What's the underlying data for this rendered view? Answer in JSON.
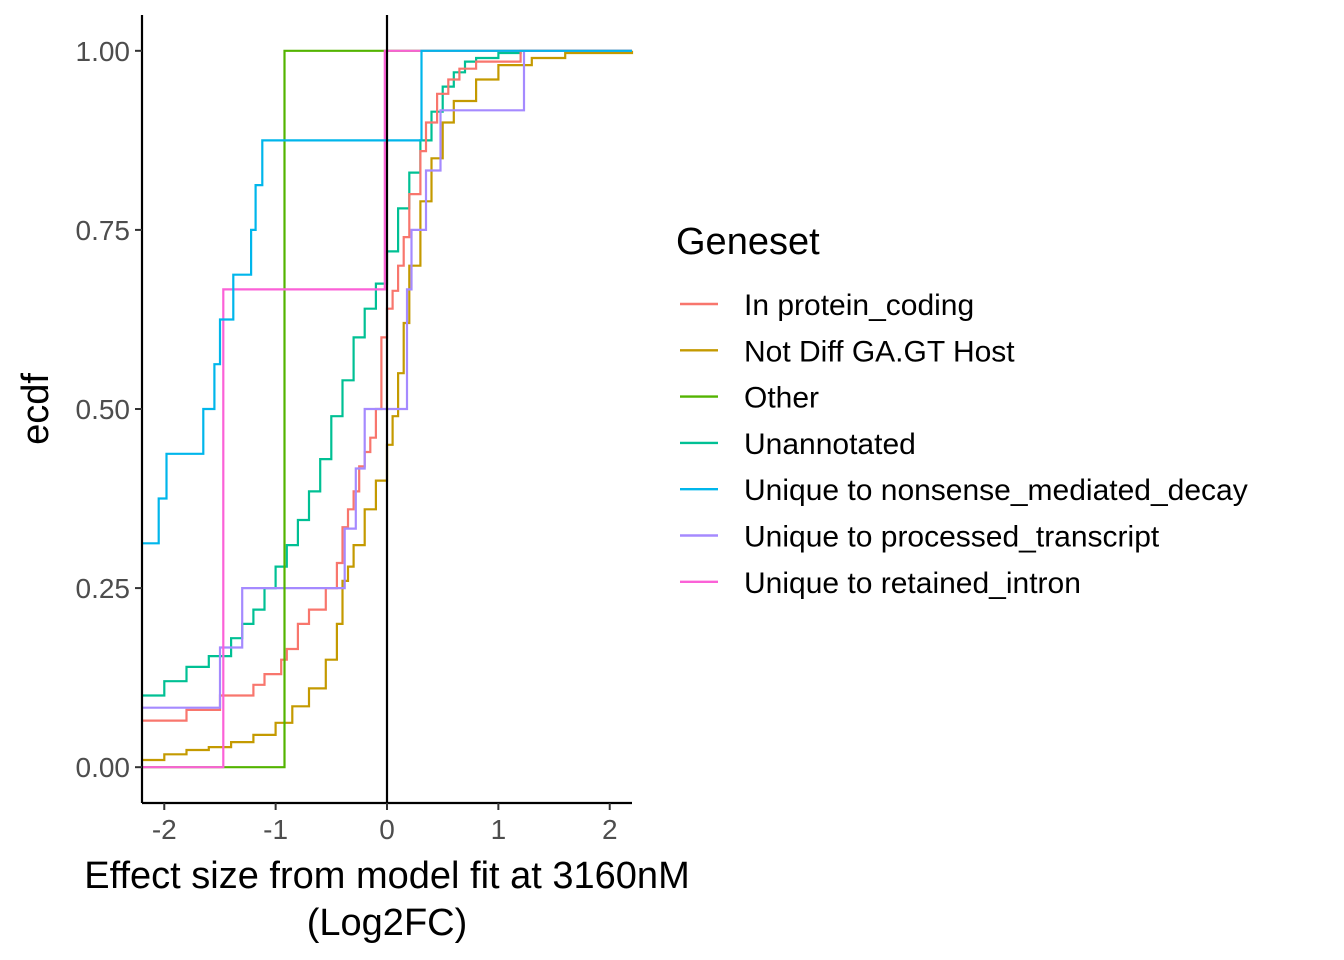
{
  "chart_data": {
    "type": "line",
    "xlabel_lines": [
      "Effect size from model fit at 3160nM",
      "(Log2FC)"
    ],
    "ylabel": "ecdf",
    "xlim": [
      -2.2,
      2.2
    ],
    "ylim": [
      -0.05,
      1.05
    ],
    "x_ticks": [
      -2,
      -1,
      0,
      1,
      2
    ],
    "x_tick_labels": [
      "-2",
      "-1",
      "0",
      "1",
      "2"
    ],
    "y_ticks": [
      0,
      0.25,
      0.5,
      0.75,
      1
    ],
    "y_tick_labels": [
      "0.00",
      "0.25",
      "0.50",
      "0.75",
      "1.00"
    ],
    "vline_x": 0,
    "legend": {
      "title": "Geneset",
      "position": "right"
    },
    "series": [
      {
        "name": "In protein_coding",
        "color": "#F8766D",
        "x": [
          -2.2,
          -1.8,
          -1.5,
          -1.2,
          -1.1,
          -0.95,
          -0.9,
          -0.8,
          -0.7,
          -0.55,
          -0.45,
          -0.4,
          -0.35,
          -0.3,
          -0.25,
          -0.2,
          -0.15,
          -0.1,
          -0.05,
          0.0,
          0.05,
          0.1,
          0.15,
          0.2,
          0.3,
          0.35,
          0.45,
          0.55,
          0.65,
          0.8,
          1.2,
          2.2
        ],
        "y": [
          0.065,
          0.08,
          0.1,
          0.115,
          0.13,
          0.15,
          0.165,
          0.2,
          0.22,
          0.25,
          0.285,
          0.335,
          0.36,
          0.385,
          0.42,
          0.44,
          0.46,
          0.5,
          0.6,
          0.64,
          0.665,
          0.7,
          0.74,
          0.8,
          0.86,
          0.9,
          0.94,
          0.96,
          0.975,
          0.985,
          1.0,
          1.0
        ]
      },
      {
        "name": "Not Diff GA.GT Host",
        "color": "#C49A00",
        "x": [
          -2.2,
          -2.0,
          -1.8,
          -1.6,
          -1.4,
          -1.2,
          -1.0,
          -0.85,
          -0.7,
          -0.55,
          -0.45,
          -0.4,
          -0.35,
          -0.3,
          -0.2,
          -0.1,
          0.0,
          0.05,
          0.1,
          0.15,
          0.2,
          0.3,
          0.4,
          0.5,
          0.6,
          0.8,
          1.0,
          1.3,
          1.6,
          2.2
        ],
        "y": [
          0.01,
          0.018,
          0.024,
          0.028,
          0.035,
          0.045,
          0.062,
          0.085,
          0.11,
          0.15,
          0.2,
          0.26,
          0.28,
          0.31,
          0.36,
          0.4,
          0.45,
          0.49,
          0.55,
          0.62,
          0.7,
          0.79,
          0.85,
          0.9,
          0.93,
          0.96,
          0.98,
          0.99,
          0.997,
          1.0
        ]
      },
      {
        "name": "Other",
        "color": "#53B400",
        "x": [
          -2.2,
          -0.92,
          -0.92,
          2.2
        ],
        "y": [
          0.0,
          0.0,
          1.0,
          1.0
        ]
      },
      {
        "name": "Unannotated",
        "color": "#00C094",
        "x": [
          -2.2,
          -2.0,
          -1.8,
          -1.6,
          -1.4,
          -1.3,
          -1.2,
          -1.1,
          -1.0,
          -0.9,
          -0.8,
          -0.7,
          -0.6,
          -0.5,
          -0.4,
          -0.3,
          -0.2,
          -0.1,
          0.0,
          0.1,
          0.2,
          0.3,
          0.4,
          0.5,
          0.6,
          0.7,
          0.8,
          1.0,
          1.2,
          2.2
        ],
        "y": [
          0.1,
          0.12,
          0.14,
          0.155,
          0.18,
          0.2,
          0.22,
          0.25,
          0.28,
          0.31,
          0.345,
          0.385,
          0.43,
          0.49,
          0.54,
          0.6,
          0.64,
          0.675,
          0.72,
          0.78,
          0.83,
          0.875,
          0.915,
          0.95,
          0.97,
          0.985,
          0.99,
          0.997,
          1.0,
          1.0
        ]
      },
      {
        "name": "Unique to nonsense_mediated_decay",
        "color": "#00B6EB",
        "x": [
          -2.2,
          -2.05,
          -1.98,
          -1.65,
          -1.55,
          -1.5,
          -1.38,
          -1.22,
          -1.18,
          -1.12,
          0.05,
          0.1,
          0.22,
          0.31,
          2.2
        ],
        "y": [
          0.3125,
          0.375,
          0.4375,
          0.5,
          0.5625,
          0.625,
          0.6875,
          0.75,
          0.8125,
          0.875,
          0.875,
          0.875,
          0.875,
          1.0,
          1.0
        ]
      },
      {
        "name": "Unique to processed_transcript",
        "color": "#A58AFF",
        "x": [
          -2.2,
          -1.5,
          -1.3,
          -0.38,
          -0.28,
          -0.2,
          0.18,
          0.22,
          0.35,
          0.48,
          1.23,
          2.2
        ],
        "y": [
          0.083,
          0.167,
          0.25,
          0.333,
          0.417,
          0.5,
          0.667,
          0.75,
          0.833,
          0.917,
          1.0,
          1.0
        ]
      },
      {
        "name": "Unique to retained_intron",
        "color": "#FB61D7",
        "x": [
          -2.2,
          -1.47,
          -1.47,
          -0.02,
          -0.02,
          2.2
        ],
        "y": [
          0.0,
          0.0,
          0.667,
          0.667,
          1.0,
          1.0
        ]
      }
    ]
  }
}
